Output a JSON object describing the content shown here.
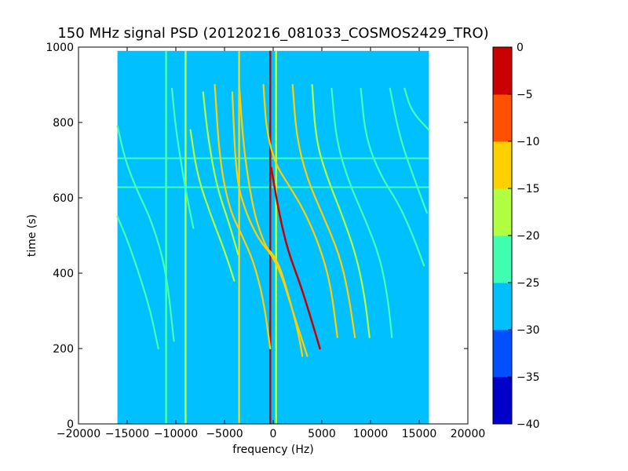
{
  "chart_data": {
    "type": "heatmap",
    "title": "150 MHz signal PSD (20120216_081033_COSMOS2429_TRO)",
    "xlabel": "frequency (Hz)",
    "ylabel": "time (s)",
    "xlim": [
      -20000,
      20000
    ],
    "ylim": [
      0,
      1000
    ],
    "x_ticks": [
      -20000,
      -15000,
      -10000,
      -5000,
      0,
      5000,
      10000,
      15000,
      20000
    ],
    "x_tick_labels": [
      "−20000",
      "−15000",
      "−10000",
      "−5000",
      "0",
      "5000",
      "10000",
      "15000",
      "20000"
    ],
    "y_ticks": [
      0,
      200,
      400,
      600,
      800,
      1000
    ],
    "y_tick_labels": [
      "0",
      "200",
      "400",
      "600",
      "800",
      "1000"
    ],
    "data_extent": {
      "x": [
        -16000,
        16000
      ],
      "y": [
        0,
        990
      ]
    },
    "background_level": -27.5,
    "colorbar": {
      "levels": [
        -40,
        -35,
        -30,
        -25,
        -20,
        -15,
        -10,
        -5,
        0
      ],
      "tick_labels": [
        "−40",
        "−35",
        "−30",
        "−25",
        "−20",
        "−15",
        "−10",
        "−5",
        "0"
      ],
      "colors": [
        "#0000c8",
        "#0050ff",
        "#00c0ff",
        "#40ffb0",
        "#b0ff40",
        "#ffd000",
        "#ff5000",
        "#c80000"
      ]
    },
    "vertical_lines": [
      {
        "x": -11000,
        "level": -22.5
      },
      {
        "x": -9000,
        "level": -17.5
      },
      {
        "x": -3500,
        "level": -12.5
      },
      {
        "x": -300,
        "level": -2.5
      },
      {
        "x": 300,
        "level": -17.5
      }
    ],
    "horizontal_lines": [
      {
        "y": 705,
        "x_range": [
          -16000,
          16000
        ],
        "level": -22.5
      },
      {
        "y": 628,
        "x_range": [
          -16000,
          16000
        ],
        "level": -22.5
      }
    ],
    "traces": [
      {
        "level": -12.5,
        "points": [
          [
            -3500,
            900
          ],
          [
            -3000,
            720
          ],
          [
            -2000,
            560
          ],
          [
            -800,
            470
          ],
          [
            0,
            450
          ],
          [
            800,
            410
          ],
          [
            1800,
            320
          ],
          [
            2600,
            240
          ],
          [
            3000,
            180
          ]
        ]
      },
      {
        "level": -2.5,
        "points": [
          [
            -200,
            680
          ],
          [
            600,
            560
          ],
          [
            1500,
            460
          ],
          [
            2800,
            370
          ],
          [
            4000,
            270
          ],
          [
            4800,
            200
          ]
        ]
      },
      {
        "level": -12.5,
        "points": [
          [
            -4200,
            880
          ],
          [
            -3800,
            650
          ],
          [
            -2800,
            560
          ],
          [
            -1500,
            490
          ],
          [
            -200,
            450
          ],
          [
            800,
            400
          ],
          [
            2000,
            300
          ],
          [
            3500,
            180
          ]
        ]
      },
      {
        "level": -12.5,
        "points": [
          [
            -6000,
            900
          ],
          [
            -5500,
            700
          ],
          [
            -4500,
            570
          ],
          [
            -3200,
            500
          ],
          [
            -2000,
            430
          ],
          [
            -1000,
            330
          ],
          [
            -300,
            200
          ]
        ]
      },
      {
        "level": -12.5,
        "points": [
          [
            -1000,
            900
          ],
          [
            -700,
            780
          ],
          [
            200,
            690
          ],
          [
            1700,
            630
          ],
          [
            3300,
            560
          ],
          [
            4800,
            470
          ],
          [
            5900,
            370
          ],
          [
            6600,
            230
          ]
        ]
      },
      {
        "level": -12.5,
        "points": [
          [
            2000,
            900
          ],
          [
            2400,
            760
          ],
          [
            3500,
            650
          ],
          [
            5000,
            560
          ],
          [
            6800,
            450
          ],
          [
            7700,
            350
          ],
          [
            8400,
            230
          ]
        ]
      },
      {
        "level": -17.5,
        "points": [
          [
            4000,
            900
          ],
          [
            4400,
            750
          ],
          [
            5600,
            650
          ],
          [
            7000,
            560
          ],
          [
            8500,
            450
          ],
          [
            9400,
            340
          ],
          [
            9900,
            230
          ]
        ]
      },
      {
        "level": -17.5,
        "points": [
          [
            -8500,
            780
          ],
          [
            -7800,
            660
          ],
          [
            -6500,
            560
          ],
          [
            -5000,
            460
          ],
          [
            -4000,
            380
          ]
        ]
      },
      {
        "level": -17.5,
        "points": [
          [
            -7200,
            880
          ],
          [
            -6700,
            760
          ],
          [
            -5800,
            630
          ],
          [
            -4500,
            530
          ],
          [
            -3600,
            450
          ]
        ]
      },
      {
        "level": -22.5,
        "points": [
          [
            -16000,
            790
          ],
          [
            -15200,
            700
          ],
          [
            -14000,
            620
          ],
          [
            -12500,
            540
          ],
          [
            -11000,
            410
          ],
          [
            -10200,
            220
          ]
        ]
      },
      {
        "level": -22.5,
        "points": [
          [
            -16000,
            550
          ],
          [
            -15000,
            490
          ],
          [
            -13800,
            400
          ],
          [
            -12600,
            300
          ],
          [
            -11800,
            200
          ]
        ]
      },
      {
        "level": -22.5,
        "points": [
          [
            -10400,
            890
          ],
          [
            -10000,
            780
          ],
          [
            -9000,
            620
          ],
          [
            -8200,
            520
          ]
        ]
      },
      {
        "level": -22.5,
        "points": [
          [
            6000,
            890
          ],
          [
            6500,
            750
          ],
          [
            7800,
            640
          ],
          [
            9500,
            540
          ],
          [
            11000,
            440
          ],
          [
            11800,
            330
          ],
          [
            12200,
            230
          ]
        ]
      },
      {
        "level": -22.5,
        "points": [
          [
            9000,
            890
          ],
          [
            9500,
            760
          ],
          [
            11000,
            660
          ],
          [
            13000,
            580
          ],
          [
            14500,
            490
          ],
          [
            15500,
            420
          ]
        ]
      },
      {
        "level": -22.5,
        "points": [
          [
            13500,
            890
          ],
          [
            14200,
            830
          ],
          [
            16000,
            780
          ]
        ]
      },
      {
        "level": -22.5,
        "points": [
          [
            12000,
            890
          ],
          [
            13000,
            760
          ],
          [
            14500,
            650
          ],
          [
            15800,
            560
          ]
        ]
      }
    ]
  }
}
